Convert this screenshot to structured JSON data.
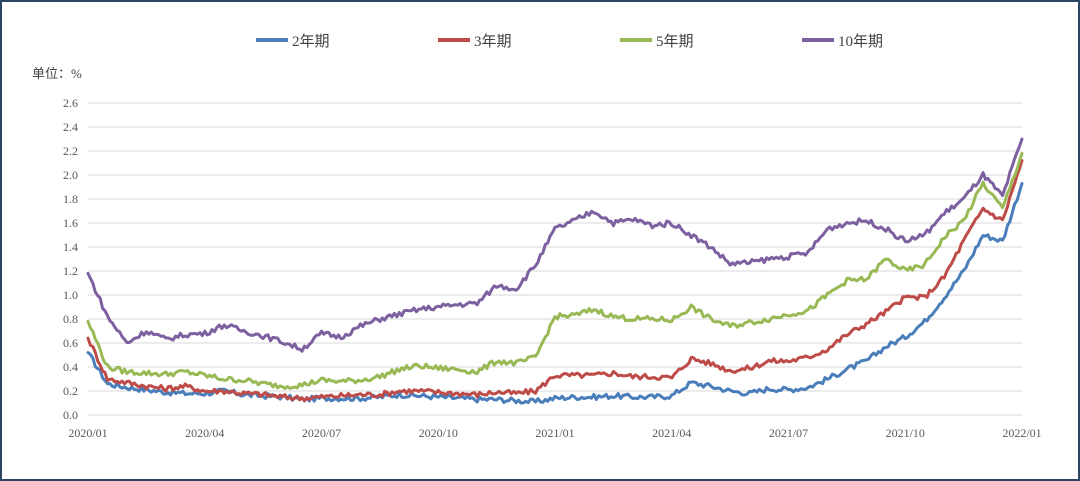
{
  "chart_data": {
    "type": "line",
    "title": "",
    "unit_label": "单位：%",
    "xlabel": "",
    "ylabel": "单位：%",
    "ylim": [
      0.0,
      2.6
    ],
    "yticks": [
      "0.0",
      "0.2",
      "0.4",
      "0.6",
      "0.8",
      "1.0",
      "1.2",
      "1.4",
      "1.6",
      "1.8",
      "2.0",
      "2.2",
      "2.4",
      "2.6"
    ],
    "xticks": [
      "2020/01",
      "2020/04",
      "2020/07",
      "2020/10",
      "2021/01",
      "2021/04",
      "2021/07",
      "2021/10",
      "2022/01"
    ],
    "grid": true,
    "legend_position": "top",
    "x_unit": "months since 2020/01",
    "x": [
      0,
      0.5,
      1,
      1.5,
      2,
      2.5,
      3,
      3.5,
      4,
      4.5,
      5,
      5.5,
      6,
      6.5,
      7,
      7.5,
      8,
      8.5,
      9,
      9.5,
      10,
      10.5,
      11,
      11.5,
      12,
      12.5,
      13,
      13.5,
      14,
      14.5,
      15,
      15.5,
      16,
      16.5,
      17,
      17.5,
      18,
      18.5,
      19,
      19.5,
      20,
      20.5,
      21,
      21.5,
      22,
      22.5,
      23,
      23.5,
      24
    ],
    "series": [
      {
        "name": "2年期",
        "color": "#4a7ebb",
        "values": [
          0.52,
          0.26,
          0.23,
          0.21,
          0.19,
          0.18,
          0.18,
          0.2,
          0.17,
          0.16,
          0.15,
          0.13,
          0.14,
          0.14,
          0.14,
          0.15,
          0.17,
          0.16,
          0.15,
          0.14,
          0.13,
          0.13,
          0.12,
          0.11,
          0.14,
          0.15,
          0.15,
          0.16,
          0.15,
          0.15,
          0.16,
          0.27,
          0.24,
          0.2,
          0.18,
          0.22,
          0.21,
          0.23,
          0.3,
          0.38,
          0.45,
          0.57,
          0.65,
          0.78,
          0.98,
          1.2,
          1.5,
          1.45,
          1.93
        ]
      },
      {
        "name": "3年期",
        "color": "#be4b48",
        "values": [
          0.64,
          0.3,
          0.27,
          0.24,
          0.22,
          0.24,
          0.2,
          0.2,
          0.18,
          0.17,
          0.15,
          0.14,
          0.15,
          0.16,
          0.17,
          0.17,
          0.2,
          0.2,
          0.19,
          0.18,
          0.17,
          0.19,
          0.18,
          0.2,
          0.33,
          0.33,
          0.33,
          0.35,
          0.32,
          0.32,
          0.31,
          0.47,
          0.43,
          0.37,
          0.39,
          0.45,
          0.45,
          0.48,
          0.55,
          0.67,
          0.76,
          0.86,
          0.98,
          0.98,
          1.15,
          1.45,
          1.72,
          1.62,
          2.12
        ]
      },
      {
        "name": "5年期",
        "color": "#98b954",
        "values": [
          0.78,
          0.4,
          0.36,
          0.35,
          0.34,
          0.36,
          0.33,
          0.3,
          0.29,
          0.26,
          0.24,
          0.25,
          0.29,
          0.28,
          0.29,
          0.32,
          0.38,
          0.41,
          0.39,
          0.38,
          0.36,
          0.45,
          0.43,
          0.48,
          0.82,
          0.83,
          0.88,
          0.82,
          0.8,
          0.8,
          0.79,
          0.9,
          0.8,
          0.74,
          0.77,
          0.8,
          0.84,
          0.87,
          1.0,
          1.12,
          1.13,
          1.3,
          1.2,
          1.25,
          1.48,
          1.62,
          1.93,
          1.72,
          2.18
        ]
      },
      {
        "name": "10年期",
        "color": "#7d60a0",
        "values": [
          1.18,
          0.82,
          0.6,
          0.7,
          0.63,
          0.67,
          0.68,
          0.75,
          0.7,
          0.66,
          0.61,
          0.55,
          0.68,
          0.65,
          0.74,
          0.8,
          0.84,
          0.88,
          0.9,
          0.92,
          0.93,
          1.08,
          1.05,
          1.25,
          1.55,
          1.62,
          1.7,
          1.6,
          1.63,
          1.58,
          1.6,
          1.5,
          1.4,
          1.26,
          1.27,
          1.3,
          1.32,
          1.35,
          1.55,
          1.6,
          1.62,
          1.55,
          1.45,
          1.5,
          1.68,
          1.8,
          2.0,
          1.82,
          2.3
        ]
      }
    ]
  },
  "legend": {
    "items": [
      {
        "label": "2年期",
        "color": "#4a7ebb"
      },
      {
        "label": "3年期",
        "color": "#be4b48"
      },
      {
        "label": "5年期",
        "color": "#98b954"
      },
      {
        "label": "10年期",
        "color": "#7d60a0"
      }
    ]
  },
  "axis": {
    "unit": "单位：%"
  }
}
